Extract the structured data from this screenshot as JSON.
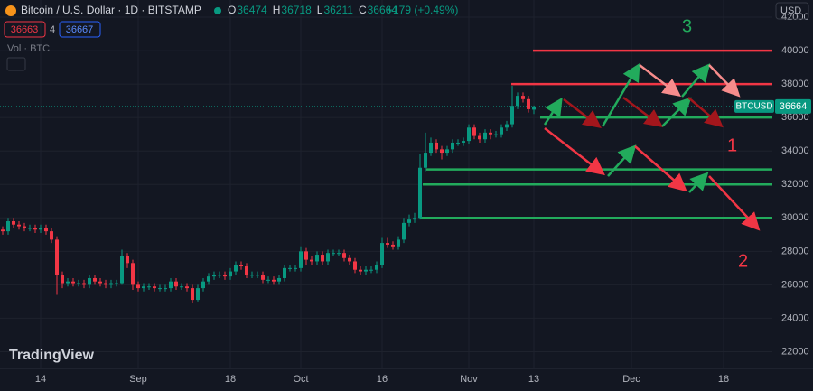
{
  "header": {
    "title": "Bitcoin / U.S. Dollar · 1D · BITSTAMP",
    "ohlc": [
      {
        "label": "O",
        "value": 36474
      },
      {
        "label": "H",
        "value": 36718
      },
      {
        "label": "L",
        "value": 36211
      },
      {
        "label": "C",
        "value": 36664
      }
    ],
    "change": "+179 (+0.49%)",
    "sell": "36663",
    "spread": "4",
    "buy": "36667",
    "volume_label": "Vol · BTC",
    "currency": "USD",
    "logo": "TradingView"
  },
  "chart_data": {
    "type": "candlestick",
    "categories": [
      null,
      null,
      null,
      null,
      null,
      null,
      null,
      "14",
      null,
      null,
      null,
      null,
      null,
      null,
      null,
      null,
      null,
      null,
      null,
      null,
      null,
      null,
      null,
      null,
      null,
      "Sep",
      null,
      null,
      null,
      null,
      null,
      null,
      null,
      null,
      null,
      null,
      null,
      null,
      null,
      null,
      null,
      null,
      "18",
      null,
      null,
      null,
      null,
      null,
      null,
      null,
      null,
      null,
      null,
      null,
      null,
      "Oct",
      null,
      null,
      null,
      null,
      null,
      null,
      null,
      null,
      null,
      null,
      null,
      null,
      null,
      null,
      "16",
      null,
      null,
      null,
      null,
      null,
      null,
      null,
      null,
      null,
      null,
      null,
      null,
      null,
      null,
      null,
      "Nov",
      null,
      null,
      null,
      null,
      null,
      null,
      null,
      null,
      null,
      null,
      null,
      "13",
      null,
      null,
      null,
      null,
      null,
      null,
      null,
      null,
      null,
      null,
      null,
      null,
      null,
      null,
      null,
      null,
      null,
      "Dec",
      null,
      null,
      null,
      null,
      null,
      null,
      null,
      null,
      null,
      null,
      null,
      null,
      null,
      null,
      null,
      null,
      "18",
      null,
      null,
      null,
      null,
      null,
      null,
      null
    ],
    "open": [
      29300,
      29200,
      29800,
      29600,
      29500,
      29400,
      29400,
      29300,
      29400,
      29200,
      28700,
      26600,
      26100,
      26200,
      26100,
      26100,
      26000,
      26400,
      26200,
      26100,
      26000,
      26100,
      26100,
      27700,
      27300,
      26000,
      25800,
      25900,
      25900,
      25800,
      25800,
      25800,
      26200,
      25900,
      25900,
      25800,
      25100,
      25800,
      26200,
      26500,
      26600,
      26600,
      26500,
      26800,
      27200,
      27100,
      26600,
      26600,
      26600,
      26300,
      26300,
      26200,
      26400,
      27000,
      27000,
      27000,
      28000,
      27500,
      27400,
      27800,
      27400,
      27900,
      27900,
      27900,
      27600,
      27400,
      26900,
      26800,
      26900,
      26900,
      27200,
      28500,
      28400,
      28300,
      28700,
      29700,
      29900,
      30000,
      33000,
      33900,
      34500,
      34100,
      33900,
      34100,
      34500,
      34500,
      34600,
      35400,
      34900,
      34700,
      35100,
      35000,
      35000,
      35400,
      35600,
      36700,
      37300,
      37100,
      36474,
      null,
      null,
      null,
      null,
      null,
      null,
      null,
      null,
      null,
      null,
      null,
      null,
      null,
      null,
      null,
      null,
      null,
      null,
      null,
      null,
      null,
      null,
      null,
      null,
      null,
      null,
      null,
      null,
      null,
      null,
      null,
      null,
      null,
      null,
      null,
      null,
      null,
      null,
      null,
      null,
      null,
      null
    ],
    "high": [
      29500,
      30000,
      30000,
      29800,
      29700,
      29600,
      29600,
      29600,
      29600,
      29400,
      28900,
      26800,
      26400,
      26400,
      26300,
      26300,
      26600,
      26600,
      26400,
      26300,
      26300,
      26300,
      28100,
      27900,
      27500,
      26200,
      26100,
      26100,
      26100,
      26000,
      26000,
      26400,
      26400,
      26100,
      26100,
      26000,
      26000,
      26400,
      26700,
      26800,
      26800,
      26800,
      27000,
      27400,
      27400,
      27300,
      26800,
      26800,
      26800,
      26500,
      26500,
      26600,
      27200,
      27200,
      27200,
      28300,
      28200,
      27700,
      28000,
      28000,
      28100,
      28100,
      28100,
      28100,
      27800,
      27600,
      27100,
      27100,
      27100,
      27400,
      28800,
      28800,
      28600,
      28900,
      30000,
      30200,
      30300,
      33800,
      35100,
      34800,
      34700,
      34300,
      34300,
      34700,
      34700,
      34800,
      35600,
      35600,
      35100,
      35300,
      35300,
      35200,
      35600,
      35800,
      37900,
      37500,
      37500,
      37300,
      36718,
      null,
      null,
      null,
      null,
      null,
      null,
      null,
      null,
      null,
      null,
      null,
      null,
      null,
      null,
      null,
      null,
      null,
      null,
      null,
      null,
      null,
      null,
      null,
      null,
      null,
      null,
      null,
      null,
      null,
      null,
      null,
      null,
      null,
      null,
      null,
      null,
      null,
      null,
      null,
      null,
      null,
      null
    ],
    "low": [
      29000,
      29000,
      29400,
      29300,
      29200,
      29200,
      29100,
      29100,
      29000,
      28500,
      25400,
      25800,
      25900,
      25900,
      25900,
      25800,
      25800,
      26000,
      25900,
      25800,
      25800,
      25900,
      26000,
      27000,
      25700,
      25600,
      25600,
      25700,
      25600,
      25600,
      25600,
      25600,
      25700,
      25700,
      25600,
      24900,
      25000,
      25600,
      26000,
      26300,
      26400,
      26300,
      26300,
      26600,
      26900,
      26400,
      26400,
      26400,
      26100,
      26100,
      26000,
      26000,
      26200,
      26800,
      26800,
      26800,
      27200,
      27200,
      27200,
      27200,
      27200,
      27700,
      27700,
      27400,
      27200,
      26700,
      26600,
      26600,
      26700,
      26700,
      27000,
      28200,
      28100,
      28100,
      28500,
      29500,
      29700,
      29900,
      32800,
      33700,
      33900,
      33500,
      33700,
      33900,
      34300,
      34300,
      34400,
      34700,
      34500,
      34500,
      34700,
      34800,
      34800,
      35200,
      35400,
      36500,
      36900,
      36300,
      36211,
      null,
      null,
      null,
      null,
      null,
      null,
      null,
      null,
      null,
      null,
      null,
      null,
      null,
      null,
      null,
      null,
      null,
      null,
      null,
      null,
      null,
      null,
      null,
      null,
      null,
      null,
      null,
      null,
      null,
      null,
      null,
      null,
      null,
      null,
      null,
      null,
      null,
      null,
      null,
      null,
      null,
      null
    ],
    "close": [
      29200,
      29800,
      29600,
      29500,
      29400,
      29400,
      29300,
      29400,
      29200,
      28700,
      26600,
      26100,
      26200,
      26100,
      26100,
      26000,
      26400,
      26200,
      26100,
      26000,
      26100,
      26100,
      27700,
      27300,
      26000,
      25800,
      25900,
      25900,
      25800,
      25800,
      25800,
      26200,
      25900,
      25900,
      25800,
      25100,
      25800,
      26200,
      26500,
      26600,
      26600,
      26500,
      26800,
      27200,
      27100,
      26600,
      26600,
      26600,
      26300,
      26300,
      26200,
      26400,
      27000,
      27000,
      27000,
      28000,
      27500,
      27400,
      27800,
      27400,
      27900,
      27900,
      27900,
      27600,
      27400,
      26900,
      26800,
      26900,
      26900,
      27200,
      28500,
      28400,
      28300,
      28700,
      29700,
      29900,
      30000,
      33000,
      33900,
      34500,
      34100,
      33900,
      34100,
      34500,
      34500,
      34600,
      35400,
      34900,
      34700,
      35100,
      35000,
      35000,
      35400,
      35600,
      36700,
      37300,
      37100,
      36500,
      36664,
      null,
      null,
      null,
      null,
      null,
      null,
      null,
      null,
      null,
      null,
      null,
      null,
      null,
      null,
      null,
      null,
      null,
      null,
      null,
      null,
      null,
      null,
      null,
      null,
      null,
      null,
      null,
      null,
      null,
      null,
      null,
      null,
      null,
      null,
      null,
      null,
      null,
      null,
      null,
      null,
      null,
      null
    ],
    "up_color": "#089981",
    "down_color": "#f23645",
    "ylim": [
      21000,
      44000
    ],
    "yticks": [
      22000,
      24000,
      26000,
      28000,
      30000,
      32000,
      34000,
      36000,
      38000,
      40000,
      42000
    ],
    "grid": true,
    "price_tag": {
      "symbol": "BTCUSD",
      "value": 36664
    },
    "levels": [
      {
        "value": 40000,
        "color": "#f23645"
      },
      {
        "value": 38000,
        "color": "#f23645"
      },
      {
        "value": 36000,
        "color": "#22ab5c"
      },
      {
        "value": 32900,
        "color": "#22ab5c"
      },
      {
        "value": 32000,
        "color": "#22ab5c"
      },
      {
        "value": 30000,
        "color": "#22ab5c"
      }
    ],
    "annotations": [
      {
        "text": "1",
        "color": "#f23645"
      },
      {
        "text": "2",
        "color": "#f23645"
      },
      {
        "text": "3",
        "color": "#22ab5c"
      }
    ]
  }
}
